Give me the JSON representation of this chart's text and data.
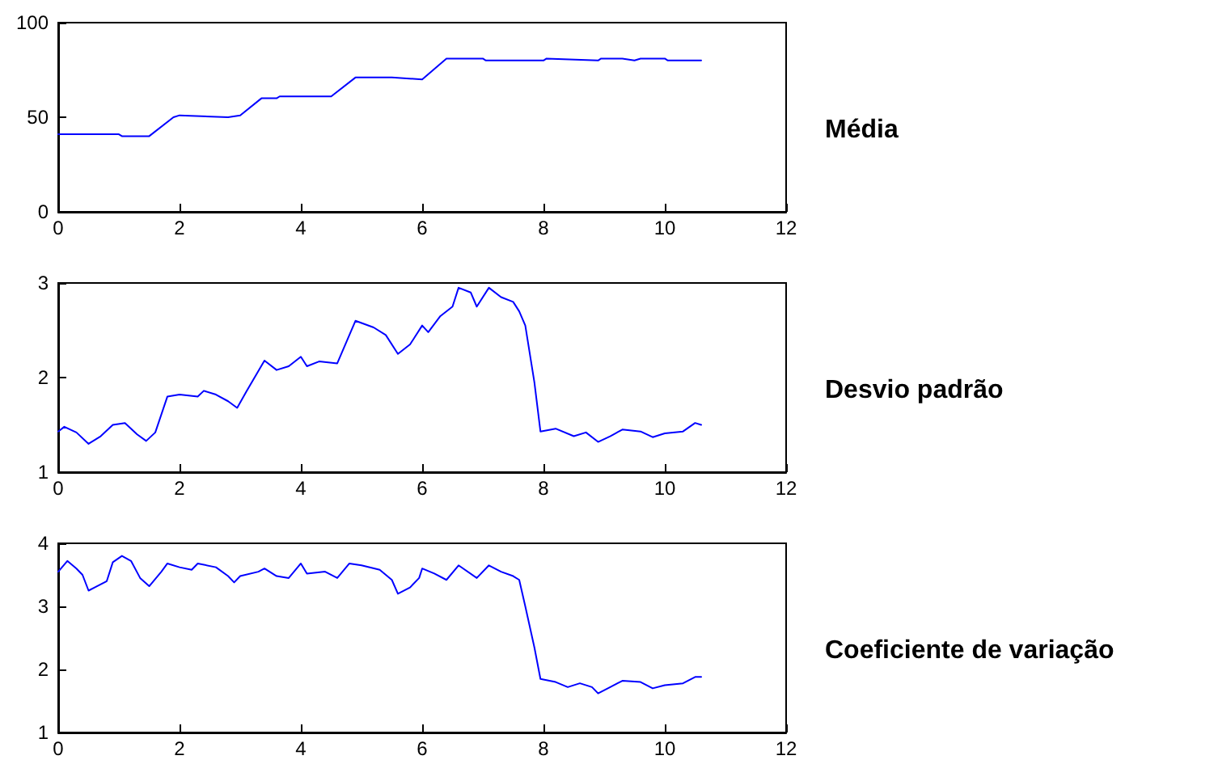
{
  "chart_data": [
    {
      "type": "line",
      "ylabel": "Média",
      "color": "#0000ff",
      "marker": "none",
      "xlim": [
        0,
        12
      ],
      "xticks": [
        0,
        2,
        4,
        6,
        8,
        10,
        12
      ],
      "ylim": [
        0,
        100
      ],
      "yticks": [
        0,
        50,
        100
      ],
      "x": [
        0,
        1.0,
        1.05,
        1.5,
        1.9,
        2.0,
        2.8,
        3.0,
        3.35,
        3.6,
        3.65,
        4.5,
        4.9,
        5.5,
        6.0,
        6.4,
        7.0,
        7.05,
        8.0,
        8.05,
        8.9,
        8.95,
        9.3,
        9.5,
        9.6,
        10.0,
        10.05,
        10.6
      ],
      "values": [
        41,
        41,
        40,
        40,
        50,
        51,
        50,
        51,
        60,
        60,
        61,
        61,
        71,
        71,
        70,
        81,
        81,
        80,
        80,
        81,
        80,
        81,
        81,
        80,
        81,
        81,
        80,
        80
      ]
    },
    {
      "type": "line",
      "ylabel": "Desvio padrão",
      "color": "#0000ff",
      "marker": "none",
      "xlim": [
        0,
        12
      ],
      "xticks": [
        0,
        2,
        4,
        6,
        8,
        10,
        12
      ],
      "ylim": [
        1,
        3
      ],
      "yticks": [
        1,
        2,
        3
      ],
      "x": [
        0,
        0.1,
        0.3,
        0.5,
        0.7,
        0.9,
        1.1,
        1.3,
        1.45,
        1.6,
        1.8,
        2.0,
        2.3,
        2.4,
        2.6,
        2.8,
        2.95,
        3.1,
        3.4,
        3.6,
        3.8,
        4.0,
        4.1,
        4.3,
        4.6,
        4.7,
        4.9,
        5.2,
        5.4,
        5.6,
        5.8,
        6.0,
        6.1,
        6.3,
        6.5,
        6.6,
        6.8,
        6.9,
        7.1,
        7.3,
        7.5,
        7.6,
        7.7,
        7.85,
        7.95,
        8.2,
        8.5,
        8.7,
        8.9,
        9.1,
        9.3,
        9.6,
        9.8,
        10.0,
        10.3,
        10.5,
        10.6
      ],
      "values": [
        1.43,
        1.48,
        1.42,
        1.3,
        1.38,
        1.5,
        1.52,
        1.4,
        1.33,
        1.42,
        1.8,
        1.82,
        1.8,
        1.86,
        1.82,
        1.75,
        1.68,
        1.85,
        2.18,
        2.08,
        2.12,
        2.22,
        2.12,
        2.17,
        2.15,
        2.3,
        2.6,
        2.53,
        2.45,
        2.25,
        2.35,
        2.55,
        2.48,
        2.65,
        2.75,
        2.95,
        2.9,
        2.75,
        2.95,
        2.85,
        2.8,
        2.7,
        2.55,
        1.95,
        1.43,
        1.46,
        1.38,
        1.42,
        1.32,
        1.38,
        1.45,
        1.43,
        1.37,
        1.41,
        1.43,
        1.52,
        1.5
      ]
    },
    {
      "type": "line",
      "ylabel": "Coeficiente de variação",
      "color": "#0000ff",
      "marker": "none",
      "xlim": [
        0,
        12
      ],
      "xticks": [
        0,
        2,
        4,
        6,
        8,
        10,
        12
      ],
      "ylim": [
        1,
        4
      ],
      "yticks": [
        1,
        2,
        3,
        4
      ],
      "x": [
        0,
        0.15,
        0.3,
        0.4,
        0.5,
        0.6,
        0.8,
        0.9,
        1.05,
        1.2,
        1.35,
        1.5,
        1.7,
        1.8,
        2.0,
        2.2,
        2.3,
        2.6,
        2.8,
        2.9,
        3.0,
        3.3,
        3.4,
        3.6,
        3.8,
        4.0,
        4.1,
        4.4,
        4.6,
        4.8,
        5.0,
        5.3,
        5.5,
        5.6,
        5.8,
        5.95,
        6.0,
        6.2,
        6.4,
        6.6,
        6.9,
        7.1,
        7.3,
        7.5,
        7.6,
        7.7,
        7.85,
        7.95,
        8.2,
        8.4,
        8.6,
        8.8,
        8.9,
        9.1,
        9.3,
        9.6,
        9.8,
        10.0,
        10.3,
        10.5,
        10.6
      ],
      "values": [
        3.55,
        3.72,
        3.6,
        3.5,
        3.25,
        3.3,
        3.4,
        3.7,
        3.8,
        3.72,
        3.45,
        3.32,
        3.55,
        3.68,
        3.62,
        3.58,
        3.68,
        3.62,
        3.48,
        3.38,
        3.48,
        3.55,
        3.6,
        3.48,
        3.45,
        3.68,
        3.52,
        3.55,
        3.45,
        3.68,
        3.65,
        3.58,
        3.42,
        3.2,
        3.3,
        3.45,
        3.6,
        3.52,
        3.42,
        3.65,
        3.45,
        3.65,
        3.55,
        3.48,
        3.42,
        3.0,
        2.35,
        1.85,
        1.8,
        1.72,
        1.78,
        1.72,
        1.62,
        1.72,
        1.82,
        1.8,
        1.7,
        1.75,
        1.78,
        1.88,
        1.88
      ]
    }
  ]
}
